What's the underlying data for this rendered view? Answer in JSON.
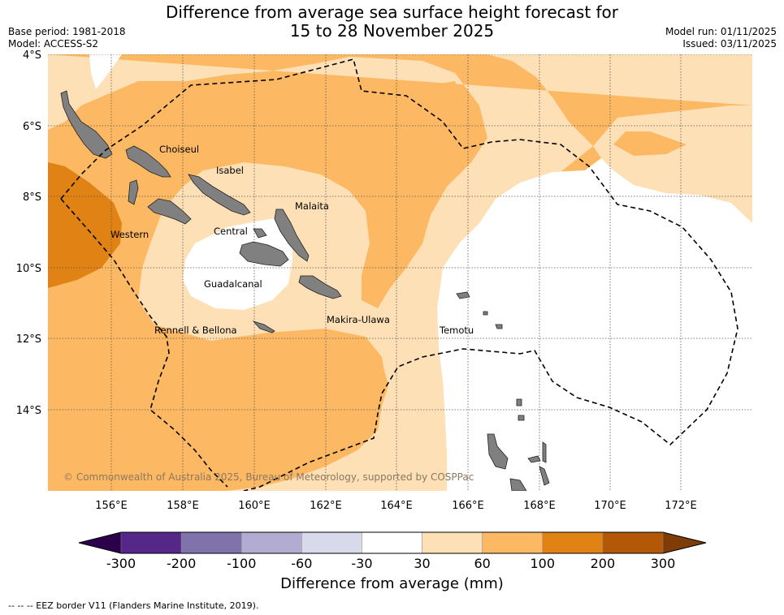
{
  "header": {
    "title_line1": "Difference from average sea surface height forecast for",
    "title_line2": "15 to 28 November 2025",
    "base_period": "Base period: 1981-2018",
    "model": "Model: ACCESS-S2",
    "model_run": "Model run: 01/11/2025",
    "issued": "Issued: 03/11/2025"
  },
  "map": {
    "lat_labels": [
      "4°S",
      "6°S",
      "8°S",
      "10°S",
      "12°S",
      "14°S"
    ],
    "lon_labels": [
      "156°E",
      "158°E",
      "160°E",
      "162°E",
      "164°E",
      "166°E",
      "168°E",
      "170°E",
      "172°E"
    ],
    "region_labels": [
      "Choiseul",
      "Isabel",
      "Malaita",
      "Western",
      "Central",
      "Guadalcanal",
      "Makira-Ulawa",
      "Rennell & Bellona",
      "Temotu"
    ],
    "copyright": "© Commonwealth of Australia 2025, Bureau of Meteorology, supported by COSPPac"
  },
  "colorbar": {
    "ticks": [
      "-300",
      "-200",
      "-100",
      "-60",
      "-30",
      "30",
      "60",
      "100",
      "200",
      "300"
    ],
    "colors": [
      "#542788",
      "#8073ac",
      "#b2abd2",
      "#d8daeb",
      "#ffffff",
      "#fee0b6",
      "#fdb863",
      "#e08214",
      "#b35806"
    ],
    "under_color": "#2d004b",
    "over_color": "#7f3b08",
    "label": "Difference from average (mm)"
  },
  "footnote": "--  --  -- EEZ border V11 (Flanders Marine Institute, 2019)."
}
